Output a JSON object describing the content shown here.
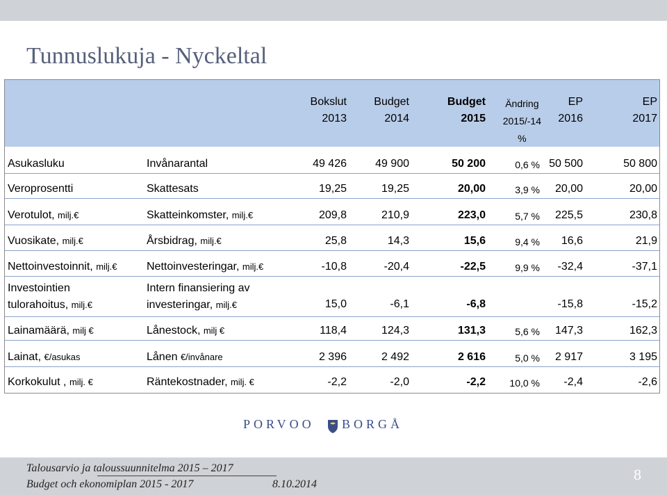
{
  "title": "Tunnuslukuja - Nyckeltal",
  "columns": [
    {
      "line1": "Bokslut",
      "line2": "2013"
    },
    {
      "line1": "Budget",
      "line2": "2014"
    },
    {
      "line1": "Budget",
      "line2": "2015"
    },
    {
      "line1": "Ändring",
      "line2": "2015/-14",
      "line3": "%"
    },
    {
      "line1": "EP",
      "line2": "2016"
    },
    {
      "line1": "EP",
      "line2": "2017"
    }
  ],
  "rows": [
    {
      "fi": "Asukasluku",
      "fi_unit": "",
      "sv": "Invånarantal",
      "sv_unit": "",
      "v2013": "49 426",
      "v2014": "49 900",
      "v2015": "50 200",
      "change": "0,6 %",
      "v2016": "50 500",
      "v2017": "50 800"
    },
    {
      "fi": "Veroprosentti",
      "fi_unit": "",
      "sv": "Skattesats",
      "sv_unit": "",
      "v2013": "19,25",
      "v2014": "19,25",
      "v2015": "20,00",
      "change": "3,9 %",
      "v2016": "20,00",
      "v2017": "20,00"
    },
    {
      "fi": "Verotulot, ",
      "fi_unit": "milj.€",
      "sv": "Skatteinkomster, ",
      "sv_unit": "milj.€",
      "v2013": "209,8",
      "v2014": "210,9",
      "v2015": "223,0",
      "change": "5,7 %",
      "v2016": "225,5",
      "v2017": "230,8"
    },
    {
      "fi": "Vuosikate, ",
      "fi_unit": "milj.€",
      "sv": "Årsbidrag, ",
      "sv_unit": "milj.€",
      "v2013": "25,8",
      "v2014": "14,3",
      "v2015": "15,6",
      "change": "9,4 %",
      "v2016": "16,6",
      "v2017": "21,9"
    },
    {
      "fi": "Nettoinvestoinnit, ",
      "fi_unit": "milj.€",
      "sv": "Nettoinvesteringar, ",
      "sv_unit": "milj.€",
      "v2013": "-10,8",
      "v2014": "-20,4",
      "v2015": "-22,5",
      "change": "9,9 %",
      "v2016": "-32,4",
      "v2017": "-37,1"
    },
    {
      "fi": "Investointien",
      "fi2": "tulorahoitus, ",
      "fi_unit": "milj.€",
      "sv": "Intern finansiering av",
      "sv2": "investeringar, ",
      "sv_unit": "milj.€",
      "v2013": "15,0",
      "v2014": "-6,1",
      "v2015": "-6,8",
      "change": "",
      "v2016": "-15,8",
      "v2017": "-15,2"
    },
    {
      "fi": "Lainamäärä, ",
      "fi_unit": "milj €",
      "sv": "Lånestock, ",
      "sv_unit": "milj €",
      "v2013": "118,4",
      "v2014": "124,3",
      "v2015": "131,3",
      "change": "5,6 %",
      "v2016": "147,3",
      "v2017": "162,3"
    },
    {
      "fi": "Lainat, ",
      "fi_unit": "€/asukas",
      "sv": "Lånen ",
      "sv_unit": "€/invånare",
      "v2013": "2 396",
      "v2014": "2 492",
      "v2015": "2 616",
      "change": "5,0 %",
      "v2016": "2 917",
      "v2017": "3 195"
    },
    {
      "fi": "Korkokulut , ",
      "fi_unit": "milj. €",
      "sv": "Räntekostnader, ",
      "sv_unit": "milj. €",
      "v2013": "-2,2",
      "v2014": "-2,0",
      "v2015": "-2,2",
      "change": "10,0 %",
      "v2016": "-2,4",
      "v2017": "-2,6"
    }
  ],
  "logo": {
    "left": "PORVOO",
    "right": "BORGÅ"
  },
  "footer": {
    "line1": "Talousarvio ja taloussuunnitelma 2015 – 2017",
    "line2": "Budget och ekonomiplan 2015 - 2017",
    "date": "8.10.2014",
    "page": "8"
  },
  "colors": {
    "header_bg": "#b8cde9",
    "title": "#56607a",
    "bar": "#cfd2d6",
    "logo": "#3a4d86"
  }
}
